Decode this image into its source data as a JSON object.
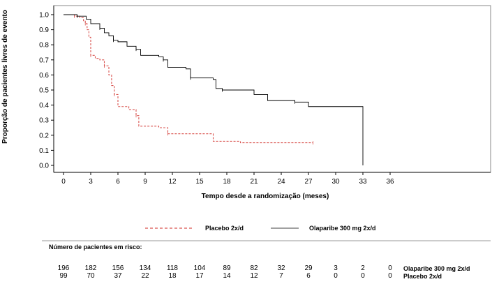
{
  "chart_data": {
    "type": "line",
    "xlabel": "Tempo desde a randomização (meses)",
    "ylabel": "Proporção de pacientes livres de evento",
    "x_ticks": [
      0,
      3,
      6,
      9,
      12,
      15,
      18,
      21,
      24,
      27,
      30,
      33,
      36
    ],
    "y_ticks": [
      "0.0",
      "0.1",
      "0.2",
      "0.3",
      "0.4",
      "0.5",
      "0.6",
      "0.7",
      "0.8",
      "0.9",
      "1.0"
    ],
    "xlim": [
      0,
      36
    ],
    "ylim": [
      0,
      1
    ],
    "grid": false,
    "legend_position": "bottom",
    "series": [
      {
        "name": "Placebo 2x/d",
        "color": "#d9534f",
        "style": "dashed",
        "x": [
          0,
          1.2,
          1.8,
          2.2,
          2.4,
          2.6,
          2.8,
          3.0,
          3.5,
          4.0,
          4.5,
          5.0,
          5.3,
          5.6,
          6.0,
          7.2,
          8.0,
          8.3,
          10.5,
          11.5,
          16.5,
          19.5,
          27.5
        ],
        "y": [
          1.0,
          0.99,
          0.98,
          0.96,
          0.94,
          0.9,
          0.85,
          0.73,
          0.71,
          0.7,
          0.66,
          0.6,
          0.53,
          0.47,
          0.39,
          0.37,
          0.33,
          0.26,
          0.25,
          0.21,
          0.16,
          0.15,
          0.15
        ]
      },
      {
        "name": "Olaparibe 300 mg 2x/d",
        "color": "#000000",
        "style": "solid",
        "x": [
          0,
          1.5,
          2.5,
          3.0,
          4.0,
          4.5,
          5.0,
          5.5,
          6.0,
          7.0,
          8.0,
          8.5,
          10.5,
          11.0,
          11.5,
          13.5,
          14.0,
          16.5,
          16.8,
          17.5,
          21.0,
          22.5,
          25.5,
          27.0,
          33.0
        ],
        "y": [
          1.0,
          0.99,
          0.97,
          0.94,
          0.91,
          0.88,
          0.86,
          0.83,
          0.82,
          0.79,
          0.77,
          0.73,
          0.72,
          0.7,
          0.65,
          0.64,
          0.58,
          0.57,
          0.51,
          0.5,
          0.47,
          0.43,
          0.42,
          0.39,
          0.39
        ],
        "end_drop_to": 0.0
      }
    ]
  },
  "legend": {
    "placebo_label": "Placebo 2x/d",
    "olaparibe_label": "Olaparibe 300 mg 2x/d"
  },
  "risk_table": {
    "title": "Número de pacientes em risco:",
    "rows": [
      {
        "label": "Olaparibe 300 mg 2x/d",
        "values": [
          "196",
          "182",
          "156",
          "134",
          "118",
          "104",
          "89",
          "82",
          "32",
          "29",
          "3",
          "2",
          "0"
        ]
      },
      {
        "label": "Placebo 2x/d",
        "values": [
          "99",
          "70",
          "37",
          "22",
          "18",
          "17",
          "14",
          "12",
          "7",
          "6",
          "0",
          "0",
          "0"
        ]
      }
    ]
  }
}
